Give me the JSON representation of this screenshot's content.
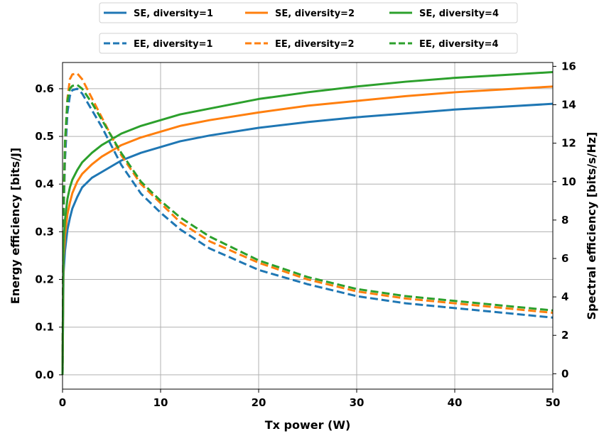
{
  "chart_data": {
    "type": "line",
    "xlabel": "Tx power (W)",
    "ylabel_left": "Energy efficiency [bits/J]",
    "ylabel_right": "Spectral efficiency [bits/s/Hz]",
    "xlim": [
      0,
      50
    ],
    "ylim_left": [
      -0.03,
      0.655
    ],
    "ylim_right": [
      -0.8,
      16.2
    ],
    "x_ticks": [
      0,
      10,
      20,
      30,
      40,
      50
    ],
    "y_left_ticks": [
      "0.0",
      "0.1",
      "0.2",
      "0.3",
      "0.4",
      "0.5",
      "0.6"
    ],
    "y_right_ticks": [
      "0",
      "2",
      "4",
      "6",
      "8",
      "10",
      "12",
      "14",
      "16"
    ],
    "grid": true,
    "legend_placement": "above plot, two rows",
    "x": [
      0,
      0.1,
      0.25,
      0.5,
      0.75,
      1,
      1.5,
      2,
      3,
      4,
      5,
      6,
      8,
      10,
      12,
      15,
      20,
      25,
      30,
      35,
      40,
      45,
      50
    ],
    "se_series": [
      {
        "name": "SE, diversity=1",
        "axis": "right",
        "style": "solid",
        "color": "#1f77b4",
        "values": [
          0,
          5.2,
          6.4,
          7.5,
          8.1,
          8.6,
          9.2,
          9.7,
          10.2,
          10.5,
          10.8,
          11.1,
          11.5,
          11.8,
          12.1,
          12.4,
          12.8,
          13.1,
          13.35,
          13.55,
          13.75,
          13.9,
          14.05
        ]
      },
      {
        "name": "SE, diversity=2",
        "axis": "right",
        "style": "solid",
        "color": "#ff7f0e",
        "values": [
          0,
          6.0,
          7.2,
          8.3,
          8.9,
          9.4,
          10.0,
          10.4,
          10.9,
          11.3,
          11.6,
          11.9,
          12.3,
          12.6,
          12.9,
          13.2,
          13.6,
          13.95,
          14.2,
          14.45,
          14.65,
          14.8,
          14.95
        ]
      },
      {
        "name": "SE, diversity=4",
        "axis": "right",
        "style": "solid",
        "color": "#2ca02c",
        "values": [
          0,
          6.8,
          8.0,
          9.1,
          9.7,
          10.1,
          10.6,
          11.0,
          11.5,
          11.9,
          12.2,
          12.5,
          12.9,
          13.2,
          13.5,
          13.8,
          14.3,
          14.65,
          14.95,
          15.2,
          15.4,
          15.55,
          15.7
        ]
      }
    ],
    "ee_series": [
      {
        "name": "EE, diversity=1",
        "axis": "left",
        "style": "dashed",
        "color": "#1f77b4",
        "values": [
          0,
          0.32,
          0.45,
          0.55,
          0.585,
          0.597,
          0.6,
          0.59,
          0.555,
          0.52,
          0.48,
          0.44,
          0.38,
          0.34,
          0.305,
          0.265,
          0.22,
          0.19,
          0.165,
          0.15,
          0.14,
          0.13,
          0.12
        ]
      },
      {
        "name": "EE, diversity=2",
        "axis": "left",
        "style": "dashed",
        "color": "#ff7f0e",
        "values": [
          0,
          0.34,
          0.48,
          0.58,
          0.62,
          0.63,
          0.632,
          0.62,
          0.58,
          0.54,
          0.5,
          0.46,
          0.4,
          0.36,
          0.32,
          0.28,
          0.235,
          0.2,
          0.175,
          0.16,
          0.15,
          0.14,
          0.13
        ]
      },
      {
        "name": "EE, diversity=4",
        "axis": "left",
        "style": "dashed",
        "color": "#2ca02c",
        "values": [
          0,
          0.35,
          0.49,
          0.575,
          0.6,
          0.606,
          0.608,
          0.6,
          0.57,
          0.535,
          0.5,
          0.465,
          0.405,
          0.365,
          0.33,
          0.29,
          0.24,
          0.205,
          0.18,
          0.165,
          0.155,
          0.145,
          0.135
        ]
      }
    ]
  }
}
